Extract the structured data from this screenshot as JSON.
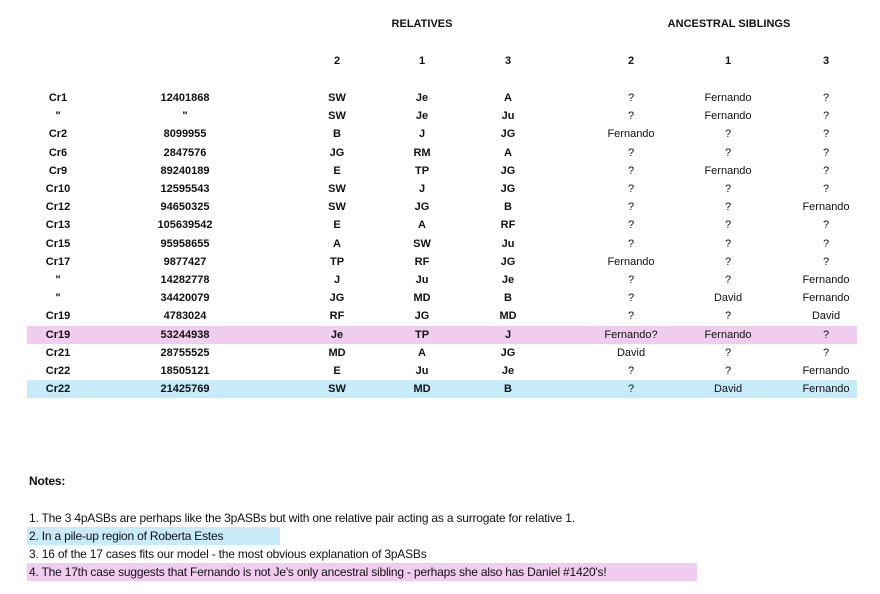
{
  "headers": {
    "relatives": "RELATIVES",
    "ancestral_siblings": "ANCESTRAL SIBLINGS",
    "rel_cols": [
      "2",
      "1",
      "3"
    ],
    "sib_cols": [
      "2",
      "1",
      "3"
    ]
  },
  "rows": [
    {
      "chr": "Cr1",
      "id": "12401868",
      "r2": "SW",
      "r1": "Je",
      "r3": "A",
      "s2": "?",
      "s1": "Fernando",
      "s3": "?",
      "highlight": ""
    },
    {
      "chr": "\"",
      "id": "\"",
      "r2": "SW",
      "r1": "Je",
      "r3": "Ju",
      "s2": "?",
      "s1": "Fernando",
      "s3": "?",
      "highlight": ""
    },
    {
      "chr": "Cr2",
      "id": "8099955",
      "r2": "B",
      "r1": "J",
      "r3": "JG",
      "s2": "Fernando",
      "s1": "?",
      "s3": "?",
      "highlight": ""
    },
    {
      "chr": "Cr6",
      "id": "2847576",
      "r2": "JG",
      "r1": "RM",
      "r3": "A",
      "s2": "?",
      "s1": "?",
      "s3": "?",
      "highlight": ""
    },
    {
      "chr": "Cr9",
      "id": "89240189",
      "r2": "E",
      "r1": "TP",
      "r3": "JG",
      "s2": "?",
      "s1": "Fernando",
      "s3": "?",
      "highlight": ""
    },
    {
      "chr": "Cr10",
      "id": "12595543",
      "r2": "SW",
      "r1": "J",
      "r3": "JG",
      "s2": "?",
      "s1": "?",
      "s3": "?",
      "highlight": ""
    },
    {
      "chr": "Cr12",
      "id": "94650325",
      "r2": "SW",
      "r1": "JG",
      "r3": "B",
      "s2": "?",
      "s1": "?",
      "s3": "Fernando",
      "highlight": ""
    },
    {
      "chr": "Cr13",
      "id": "105639542",
      "r2": "E",
      "r1": "A",
      "r3": "RF",
      "s2": "?",
      "s1": "?",
      "s3": "?",
      "highlight": ""
    },
    {
      "chr": "Cr15",
      "id": "95958655",
      "r2": "A",
      "r1": "SW",
      "r3": "Ju",
      "s2": "?",
      "s1": "?",
      "s3": "?",
      "highlight": ""
    },
    {
      "chr": "Cr17",
      "id": "9877427",
      "r2": "TP",
      "r1": "RF",
      "r3": "JG",
      "s2": "Fernando",
      "s1": "?",
      "s3": "?",
      "highlight": ""
    },
    {
      "chr": "\"",
      "id": "14282778",
      "r2": "J",
      "r1": "Ju",
      "r3": "Je",
      "s2": "?",
      "s1": "?",
      "s3": "Fernando",
      "highlight": ""
    },
    {
      "chr": "\"",
      "id": "34420079",
      "r2": "JG",
      "r1": "MD",
      "r3": "B",
      "s2": "?",
      "s1": "David",
      "s3": "Fernando",
      "highlight": ""
    },
    {
      "chr": "Cr19",
      "id": "4783024",
      "r2": "RF",
      "r1": "JG",
      "r3": "MD",
      "s2": "?",
      "s1": "?",
      "s3": "David",
      "highlight": ""
    },
    {
      "chr": "Cr19",
      "id": "53244938",
      "r2": "Je",
      "r1": "TP",
      "r3": "J",
      "s2": "Fernando?",
      "s1": "Fernando",
      "s3": "?",
      "highlight": "pink"
    },
    {
      "chr": "Cr21",
      "id": "28755525",
      "r2": "MD",
      "r1": "A",
      "r3": "JG",
      "s2": "David",
      "s1": "?",
      "s3": "?",
      "highlight": ""
    },
    {
      "chr": "Cr22",
      "id": "18505121",
      "r2": "E",
      "r1": "Ju",
      "r3": "Je",
      "s2": "?",
      "s1": "?",
      "s3": "Fernando",
      "highlight": ""
    },
    {
      "chr": "Cr22",
      "id": "21425769",
      "r2": "SW",
      "r1": "MD",
      "r3": "B",
      "s2": "?",
      "s1": "David",
      "s3": "Fernando",
      "highlight": "blue"
    }
  ],
  "notes": {
    "title": "Notes:",
    "items": [
      {
        "text": "1. The 3 4pASBs are perhaps like the 3pASBs but with one relative pair acting as a surrogate for relative 1.",
        "highlight": ""
      },
      {
        "text": "2. In a pile-up region of Roberta Estes",
        "highlight": "blue"
      },
      {
        "text": "3. 16 of the 17 cases fits our model - the most obvious explanation of 3pASBs",
        "highlight": ""
      },
      {
        "text": "4. The 17th case suggests that Fernando is not Je's only ancestral sibling - perhaps she also has Daniel #1420's!",
        "highlight": "pink"
      }
    ]
  },
  "colors": {
    "pink": "#f0cdef",
    "blue": "#c8ebf9"
  }
}
